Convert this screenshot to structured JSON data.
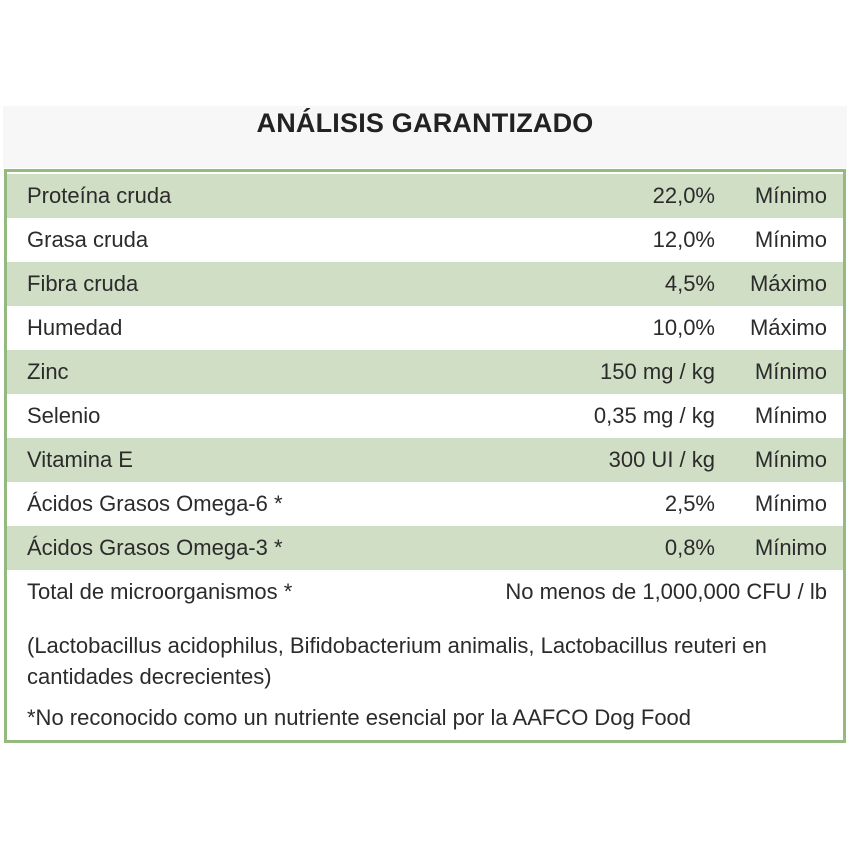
{
  "title": "ANÁLISIS GARANTIZADO",
  "rows": [
    {
      "label": "Proteína cruda",
      "value": "22,0%",
      "qualifier": "Mínimo"
    },
    {
      "label": "Grasa cruda",
      "value": "12,0%",
      "qualifier": "Mínimo"
    },
    {
      "label": "Fibra cruda",
      "value": "4,5%",
      "qualifier": "Máximo"
    },
    {
      "label": "Humedad",
      "value": "10,0%",
      "qualifier": "Máximo"
    },
    {
      "label": "Zinc",
      "value": "150 mg / kg",
      "qualifier": "Mínimo"
    },
    {
      "label": "Selenio",
      "value": "0,35 mg / kg",
      "qualifier": "Mínimo"
    },
    {
      "label": "Vitamina E",
      "value": "300 UI / kg",
      "qualifier": "Mínimo"
    },
    {
      "label": "Ácidos Grasos Omega-6 *",
      "value": "2,5%",
      "qualifier": "Mínimo"
    },
    {
      "label": "Ácidos Grasos Omega-3 *",
      "value": "0,8%",
      "qualifier": "Mínimo"
    },
    {
      "label": "Total de microorganismos *",
      "value": "No menos de 1,000,000 CFU / lb"
    }
  ],
  "note_strains": "(Lactobacillus acidophilus, Bifidobacterium animalis, Lactobacillus reuteri en cantidades decrecientes)",
  "footnote": "*No reconocido como un nutriente esencial por la AAFCO Dog Food",
  "colors": {
    "border": "#95ba7f",
    "shaded_row": "#cfdec4",
    "title_band": "#f6f7f6"
  }
}
